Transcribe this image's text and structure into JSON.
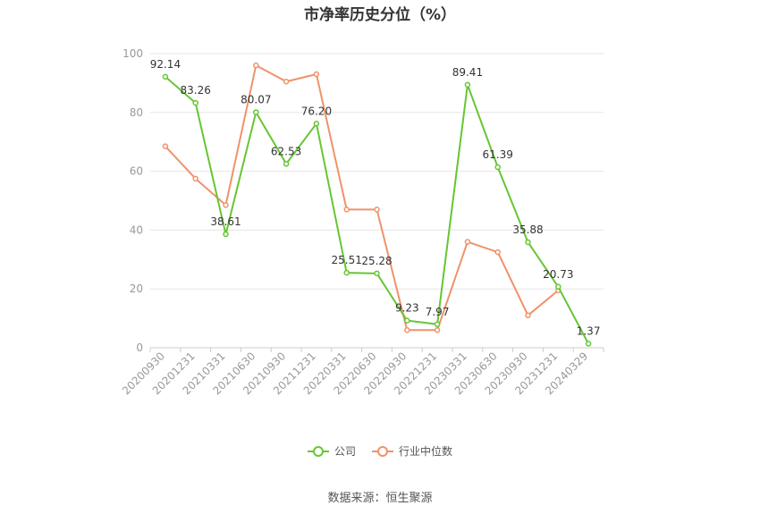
{
  "chart_data": {
    "type": "line",
    "title": "市净率历史分位（%）",
    "categories": [
      "20200930",
      "20201231",
      "20210331",
      "20210630",
      "20210930",
      "20211231",
      "20220331",
      "20220630",
      "20220930",
      "20221231",
      "20230331",
      "20230630",
      "20230930",
      "20231231",
      "20240329"
    ],
    "ylim": [
      0,
      100
    ],
    "yticks": [
      0,
      20,
      40,
      60,
      80,
      100
    ],
    "grid": true,
    "legend_position": "bottom",
    "series": [
      {
        "name": "公司",
        "color": "#66c633",
        "values": [
          92.14,
          83.26,
          38.61,
          80.07,
          62.53,
          76.2,
          25.51,
          25.28,
          9.23,
          7.97,
          89.41,
          61.39,
          35.88,
          20.73,
          1.37
        ],
        "labels": [
          "92.14",
          "83.26",
          "38.61",
          "80.07",
          "62.53",
          "76.20",
          "25.51",
          "25.28",
          "9.23",
          "7.97",
          "89.41",
          "61.39",
          "35.88",
          "20.73",
          "1.37"
        ]
      },
      {
        "name": "行业中位数",
        "color": "#f0926a",
        "values": [
          68.5,
          57.5,
          48.5,
          96,
          90.5,
          93,
          47,
          47,
          6,
          6,
          36,
          32.5,
          11,
          19.5,
          null
        ]
      }
    ],
    "source": "数据来源：恒生聚源"
  }
}
